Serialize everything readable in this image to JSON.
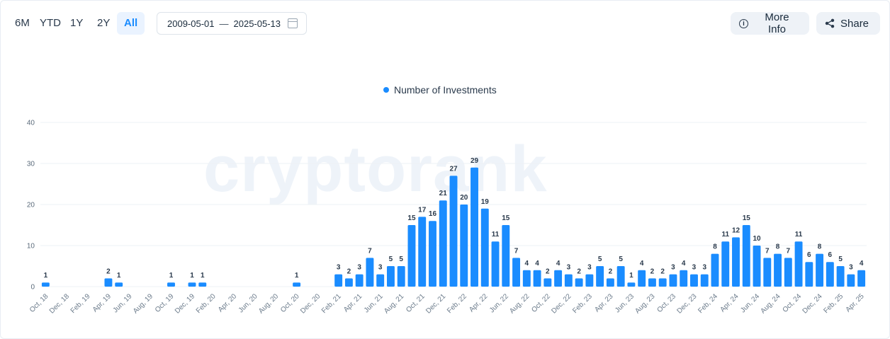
{
  "toolbar": {
    "ranges": [
      {
        "label": "6M",
        "active": false
      },
      {
        "label": "YTD",
        "active": false
      },
      {
        "label": "1Y",
        "active": false
      },
      {
        "label": "2Y",
        "active": false
      },
      {
        "label": "All",
        "active": true
      }
    ],
    "date_from": "2009-05-01",
    "date_separator": "—",
    "date_to": "2025-05-13",
    "more_info_label": "More Info",
    "share_label": "Share"
  },
  "watermark": "cryptorank",
  "colors": {
    "bar": "#1a8cff",
    "grid": "#eef1f5",
    "accent": "#1a8cff"
  },
  "chart_data": {
    "type": "bar",
    "series": [
      {
        "name": "Number of Investments"
      }
    ],
    "legend": "top-center",
    "ylim": [
      0,
      40
    ],
    "yticks": [
      0,
      10,
      20,
      30,
      40
    ],
    "grid": true,
    "x_tick_labels": [
      "Oct, 18",
      "Dec, 18",
      "Feb, 19",
      "Apr, 19",
      "Jun, 19",
      "Aug, 19",
      "Oct, 19",
      "Dec, 19",
      "Feb, 20",
      "Apr, 20",
      "Jun, 20",
      "Aug, 20",
      "Oct, 20",
      "Dec, 20",
      "Feb, 21",
      "Apr, 21",
      "Jun, 21",
      "Aug, 21",
      "Oct, 21",
      "Dec, 21",
      "Feb, 22",
      "Apr, 22",
      "Jun, 22",
      "Aug, 22",
      "Oct, 22",
      "Dec, 22",
      "Feb, 23",
      "Apr, 23",
      "Jun, 23",
      "Aug, 23",
      "Oct, 23",
      "Dec, 23",
      "Feb, 24",
      "Apr, 24",
      "Jun, 24",
      "Aug, 24",
      "Oct, 24",
      "Dec, 24",
      "Feb, 25",
      "Apr, 25"
    ],
    "bars": [
      {
        "x": "2018-10",
        "value": 1
      },
      {
        "x": "2019-04",
        "value": 2
      },
      {
        "x": "2019-05",
        "value": 1
      },
      {
        "x": "2019-10",
        "value": 1
      },
      {
        "x": "2019-12",
        "value": 1
      },
      {
        "x": "2020-01",
        "value": 1
      },
      {
        "x": "2020-10",
        "value": 1
      },
      {
        "x": "2021-02",
        "value": 3
      },
      {
        "x": "2021-03",
        "value": 2
      },
      {
        "x": "2021-04",
        "value": 3
      },
      {
        "x": "2021-05",
        "value": 7
      },
      {
        "x": "2021-06",
        "value": 3
      },
      {
        "x": "2021-07",
        "value": 5
      },
      {
        "x": "2021-08",
        "value": 5
      },
      {
        "x": "2021-09",
        "value": 15
      },
      {
        "x": "2021-10",
        "value": 17
      },
      {
        "x": "2021-11",
        "value": 16
      },
      {
        "x": "2021-12",
        "value": 21
      },
      {
        "x": "2022-01",
        "value": 27
      },
      {
        "x": "2022-02",
        "value": 20
      },
      {
        "x": "2022-03",
        "value": 29
      },
      {
        "x": "2022-04",
        "value": 19
      },
      {
        "x": "2022-05",
        "value": 11
      },
      {
        "x": "2022-06",
        "value": 15
      },
      {
        "x": "2022-07",
        "value": 7
      },
      {
        "x": "2022-08",
        "value": 4
      },
      {
        "x": "2022-09",
        "value": 4
      },
      {
        "x": "2022-10",
        "value": 2
      },
      {
        "x": "2022-11",
        "value": 4
      },
      {
        "x": "2022-12",
        "value": 3
      },
      {
        "x": "2023-01",
        "value": 2
      },
      {
        "x": "2023-02",
        "value": 3
      },
      {
        "x": "2023-03",
        "value": 5
      },
      {
        "x": "2023-04",
        "value": 2
      },
      {
        "x": "2023-05",
        "value": 5
      },
      {
        "x": "2023-06",
        "value": 1
      },
      {
        "x": "2023-07",
        "value": 4
      },
      {
        "x": "2023-08",
        "value": 2
      },
      {
        "x": "2023-09",
        "value": 2
      },
      {
        "x": "2023-10",
        "value": 3
      },
      {
        "x": "2023-11",
        "value": 4
      },
      {
        "x": "2023-12",
        "value": 3
      },
      {
        "x": "2024-01",
        "value": 3
      },
      {
        "x": "2024-02",
        "value": 8
      },
      {
        "x": "2024-03",
        "value": 11
      },
      {
        "x": "2024-04",
        "value": 12
      },
      {
        "x": "2024-05",
        "value": 15
      },
      {
        "x": "2024-06",
        "value": 10
      },
      {
        "x": "2024-07",
        "value": 7
      },
      {
        "x": "2024-08",
        "value": 8
      },
      {
        "x": "2024-09",
        "value": 7
      },
      {
        "x": "2024-10",
        "value": 11
      },
      {
        "x": "2024-11",
        "value": 6
      },
      {
        "x": "2024-12",
        "value": 8
      },
      {
        "x": "2025-01",
        "value": 6
      },
      {
        "x": "2025-02",
        "value": 5
      },
      {
        "x": "2025-03",
        "value": 3
      },
      {
        "x": "2025-04",
        "value": 4
      }
    ]
  }
}
